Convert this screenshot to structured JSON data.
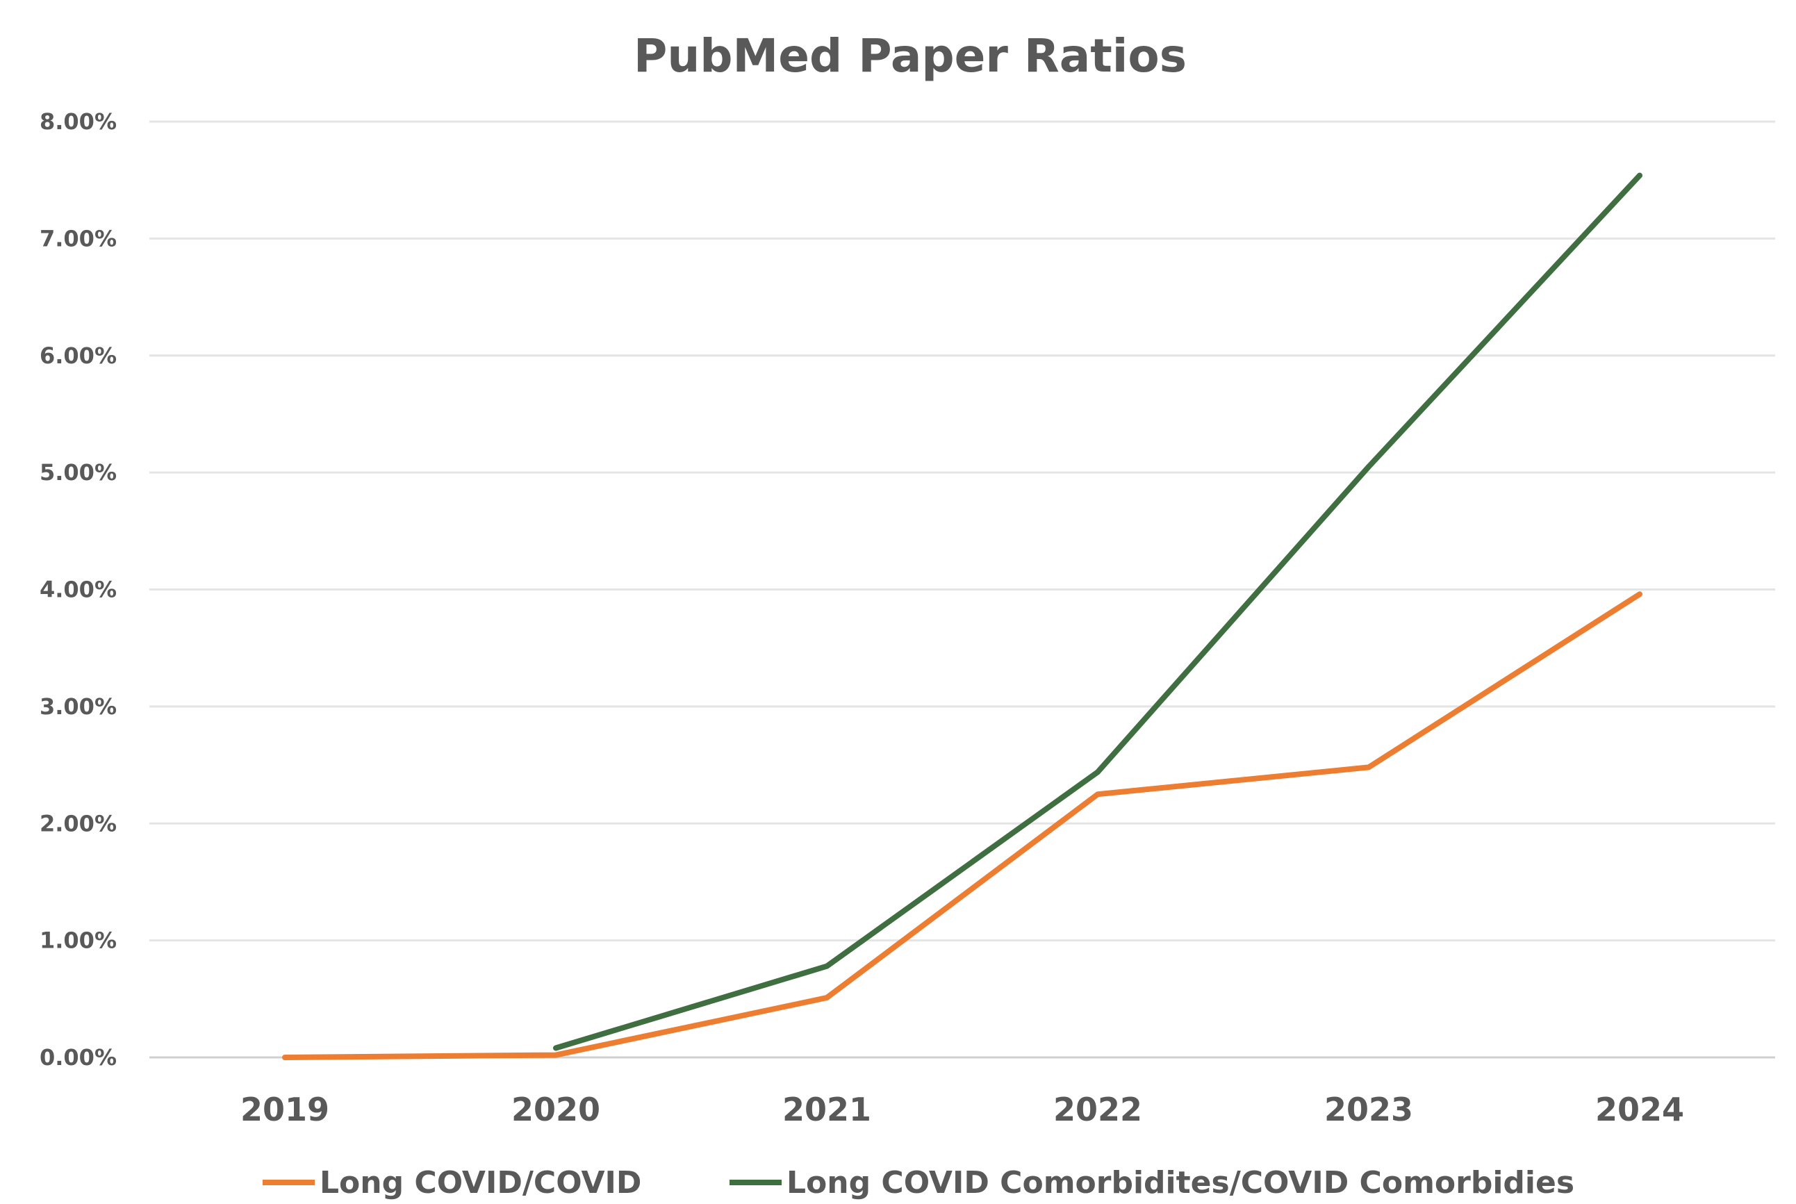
{
  "chart_data": {
    "type": "line",
    "title": "PubMed Paper Ratios",
    "xlabel": "",
    "ylabel": "",
    "categories": [
      "2019",
      "2020",
      "2021",
      "2022",
      "2023",
      "2024"
    ],
    "ylim": [
      0,
      0.08
    ],
    "yticks": [
      {
        "value": 0.0,
        "label": "0.00%"
      },
      {
        "value": 0.01,
        "label": "1.00%"
      },
      {
        "value": 0.02,
        "label": "2.00%"
      },
      {
        "value": 0.03,
        "label": "3.00%"
      },
      {
        "value": 0.04,
        "label": "4.00%"
      },
      {
        "value": 0.05,
        "label": "5.00%"
      },
      {
        "value": 0.06,
        "label": "6.00%"
      },
      {
        "value": 0.07,
        "label": "7.00%"
      },
      {
        "value": 0.08,
        "label": "8.00%"
      }
    ],
    "grid": true,
    "legend_position": "bottom",
    "series": [
      {
        "name": "Long COVID/COVID",
        "color": "#ed7d31",
        "values": [
          0.0,
          0.0002,
          0.0051,
          0.0225,
          0.0248,
          0.0396
        ]
      },
      {
        "name": "Long COVID Comorbidites/COVID Comorbidies",
        "color": "#3f6e40",
        "values": [
          null,
          0.0008,
          0.0078,
          0.0244,
          0.0505,
          0.0754
        ]
      }
    ]
  }
}
